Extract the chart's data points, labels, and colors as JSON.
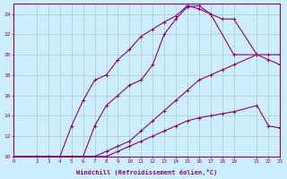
{
  "xlabel": "Windchill (Refroidissement éolien,°C)",
  "bg_color": "#cceeff",
  "line_color": "#880088",
  "grid_color": "#aaccbb",
  "xlim": [
    0,
    23
  ],
  "ylim": [
    10,
    25
  ],
  "yticks": [
    10,
    12,
    14,
    16,
    18,
    20,
    22,
    24
  ],
  "xticks": [
    0,
    2,
    3,
    4,
    5,
    6,
    7,
    8,
    9,
    10,
    11,
    12,
    13,
    14,
    15,
    16,
    17,
    18,
    19,
    21,
    22,
    23
  ],
  "line1_x": [
    0,
    2,
    3,
    4,
    5,
    6,
    7,
    8,
    9,
    10,
    11,
    12,
    13,
    14,
    15,
    16,
    17,
    18,
    19,
    21,
    22,
    23
  ],
  "line1_y": [
    10,
    10,
    10,
    10,
    10,
    10,
    10,
    10,
    10.5,
    11,
    11.5,
    12,
    12.5,
    13,
    13.5,
    13.8,
    14,
    14.2,
    14.4,
    15,
    13,
    12.8
  ],
  "line2_x": [
    0,
    2,
    3,
    4,
    5,
    6,
    7,
    8,
    9,
    10,
    11,
    12,
    13,
    14,
    15,
    16,
    17,
    18,
    19,
    21,
    22,
    23
  ],
  "line2_y": [
    10,
    10,
    10,
    10,
    10,
    10,
    10,
    10.5,
    11,
    11.5,
    12.5,
    13.5,
    14.5,
    15.5,
    16.5,
    17.5,
    18,
    18.5,
    19,
    20,
    19.5,
    19
  ],
  "line3_x": [
    0,
    2,
    3,
    4,
    5,
    6,
    7,
    8,
    9,
    10,
    11,
    12,
    13,
    14,
    15,
    16,
    17,
    19,
    21
  ],
  "line3_y": [
    10,
    10,
    10,
    10,
    13,
    15.5,
    17.5,
    18,
    19.5,
    20.5,
    21.8,
    22.5,
    23.2,
    23.8,
    24.8,
    24.5,
    24,
    20,
    20
  ],
  "line4_x": [
    0,
    2,
    3,
    4,
    5,
    6,
    7,
    8,
    9,
    10,
    11,
    12,
    13,
    14,
    15,
    16,
    17,
    18,
    19,
    21,
    22,
    23
  ],
  "line4_y": [
    10,
    10,
    10,
    10,
    10,
    10,
    13,
    15,
    16,
    17,
    17.5,
    19,
    22,
    23.5,
    24.7,
    24.8,
    24,
    23.5,
    23.5,
    20,
    20,
    20
  ]
}
